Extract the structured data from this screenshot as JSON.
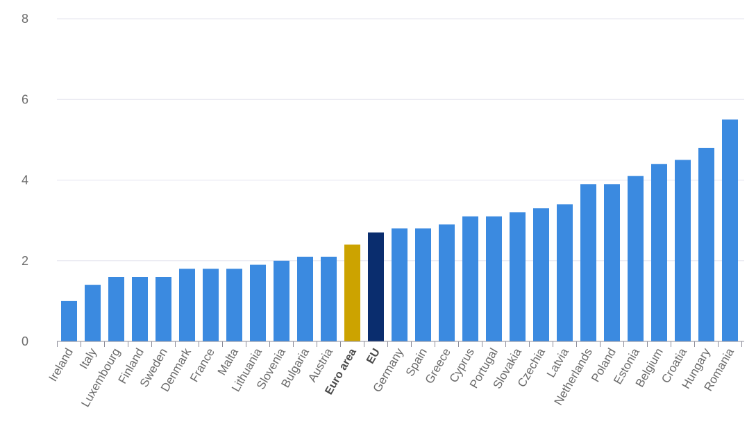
{
  "chart_data": {
    "type": "bar",
    "title": "",
    "xlabel": "",
    "ylabel": "",
    "ylim": [
      0,
      8
    ],
    "yticks": [
      0,
      2,
      4,
      6,
      8
    ],
    "grid": true,
    "legend": "none",
    "categories": [
      "Ireland",
      "Italy",
      "Luxembourg",
      "Finland",
      "Sweden",
      "Denmark",
      "France",
      "Malta",
      "Lithuania",
      "Slovenia",
      "Bulgaria",
      "Austria",
      "Euro area",
      "EU",
      "Germany",
      "Spain",
      "Greece",
      "Cyprus",
      "Portugal",
      "Slovakia",
      "Czechia",
      "Latvia",
      "Netherlands",
      "Poland",
      "Estonia",
      "Belgium",
      "Croatia",
      "Hungary",
      "Romania"
    ],
    "values": [
      1.0,
      1.4,
      1.6,
      1.6,
      1.6,
      1.8,
      1.8,
      1.8,
      1.9,
      2.0,
      2.1,
      2.1,
      2.4,
      2.7,
      2.8,
      2.8,
      2.9,
      3.1,
      3.1,
      3.2,
      3.3,
      3.4,
      3.9,
      3.9,
      4.1,
      4.4,
      4.5,
      4.8,
      5.5
    ],
    "bold_categories": [
      "Euro area",
      "EU"
    ],
    "colors": {
      "default": "#3b8ae0",
      "Euro area": "#cca300",
      "EU": "#0a2d6e"
    }
  }
}
